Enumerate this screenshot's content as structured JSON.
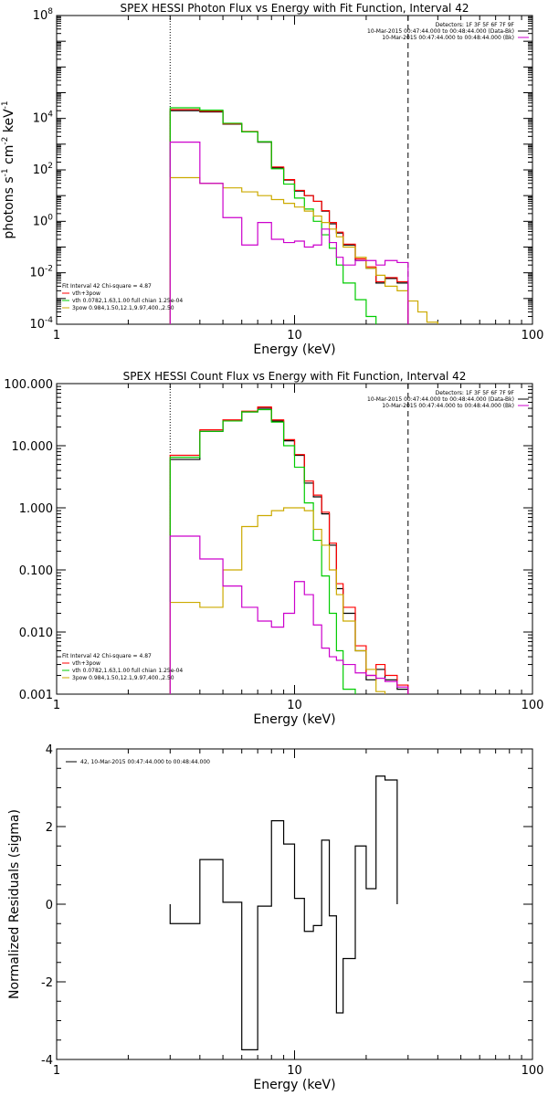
{
  "chart_data": [
    {
      "type": "line",
      "step": true,
      "title": "SPEX HESSI Photon Flux vs Energy with Fit Function, Interval 42",
      "xlabel": "Energy (keV)",
      "ylabel": "photons s^-1 cm^-2 keV^-1",
      "ylabel_parts": [
        "photons s",
        "-1",
        " cm",
        "-2",
        " keV",
        "-1"
      ],
      "xscale": "log",
      "yscale": "log",
      "xlim": [
        1,
        100
      ],
      "ylim": [
        0.0001,
        100000000
      ],
      "xticks": [
        {
          "v": 1,
          "label": "1"
        },
        {
          "v": 10,
          "label": "10"
        },
        {
          "v": 100,
          "label": "100"
        }
      ],
      "yticks": [
        {
          "v": 0.0001,
          "base": "10",
          "exp": "-4"
        },
        {
          "v": 0.01,
          "base": "10",
          "exp": "-2"
        },
        {
          "v": 1,
          "base": "10",
          "exp": "0"
        },
        {
          "v": 100,
          "base": "10",
          "exp": "2"
        },
        {
          "v": 10000,
          "base": "10",
          "exp": "4"
        },
        {
          "v": 100000000,
          "base": "10",
          "exp": "8"
        }
      ],
      "vlines": [
        {
          "x": 3,
          "style": "dotted"
        },
        {
          "x": 30,
          "style": "dashed"
        }
      ],
      "legend_top_right": [
        {
          "text": "Detectors: 1F 3F 5F 6F 7F 9F",
          "color": null
        },
        {
          "text": "10-Mar-2015 00:47:44.000 to 00:48:44.000 (Data-Bk)",
          "color": "#000000"
        },
        {
          "text": "10-Mar-2015 00:47:44.000 to 00:48:44.000 (Bk)",
          "color": "#cc00cc"
        }
      ],
      "legend_bottom_left": [
        {
          "text": "Fit Interval 42   Chi-square = 4.87",
          "color": null
        },
        {
          "text": "vth+3pow",
          "color": "#ff0000"
        },
        {
          "text": "vth 0.0782,1.63,1.00  full chian 1.25e-04",
          "color": "#00cc00"
        },
        {
          "text": "3pow 0.984,1.50,12.1,9.97,400.,2.50",
          "color": "#ccaa00"
        }
      ],
      "bin_edges": [
        3,
        4,
        5,
        6,
        7,
        8,
        9,
        10,
        11,
        12,
        13,
        14,
        15,
        16,
        18,
        20,
        22,
        24,
        27,
        30,
        33,
        36,
        40
      ],
      "series": [
        {
          "name": "Data-Bk",
          "color": "#000000",
          "values": [
            20000,
            18000,
            6000,
            3000,
            1200,
            120,
            40,
            15,
            10,
            6,
            2.5,
            0.8,
            0.35,
            0.12,
            0.03,
            0.015,
            0.004,
            0.006,
            0.004
          ]
        },
        {
          "name": "vth+3pow",
          "color": "#ff0000",
          "values": [
            22000,
            19000,
            6200,
            3100,
            1250,
            130,
            42,
            16,
            10,
            6,
            2.6,
            0.9,
            0.38,
            0.13,
            0.035,
            0.017,
            0.0045,
            0.0065,
            0.0045
          ]
        },
        {
          "name": "vth",
          "color": "#00cc00",
          "values": [
            26000,
            21000,
            6500,
            3000,
            1250,
            110,
            28,
            8,
            3,
            1,
            0.3,
            0.09,
            0.02,
            0.004,
            0.0009,
            0.0002,
            2e-05
          ]
        },
        {
          "name": "3pow",
          "color": "#ccaa00",
          "values": [
            50,
            30,
            20,
            14,
            10,
            7,
            5,
            3.6,
            2.5,
            1.6,
            0.9,
            0.5,
            0.25,
            0.1,
            0.04,
            0.015,
            0.008,
            0.003,
            0.002,
            0.0008,
            0.0003,
            0.00012
          ]
        },
        {
          "name": "Bk",
          "color": "#cc00cc",
          "values": [
            1200,
            30,
            1.4,
            0.12,
            0.9,
            0.2,
            0.15,
            0.17,
            0.1,
            0.12,
            0.5,
            0.15,
            0.04,
            0.02,
            0.03,
            0.03,
            0.02,
            0.03,
            0.025
          ]
        }
      ]
    },
    {
      "type": "line",
      "step": true,
      "title": "SPEX HESSI Count Flux vs Energy with Fit Function, Interval 42",
      "xlabel": "Energy (keV)",
      "ylabel": "",
      "xscale": "log",
      "yscale": "log",
      "xlim": [
        1,
        100
      ],
      "ylim": [
        0.001,
        100
      ],
      "xticks": [
        {
          "v": 1,
          "label": "1"
        },
        {
          "v": 10,
          "label": "10"
        },
        {
          "v": 100,
          "label": "100"
        }
      ],
      "yticks": [
        {
          "v": 0.001,
          "label": "0.001"
        },
        {
          "v": 0.01,
          "label": "0.010"
        },
        {
          "v": 0.1,
          "label": "0.100"
        },
        {
          "v": 1,
          "label": "1.000"
        },
        {
          "v": 10,
          "label": "10.000"
        },
        {
          "v": 100,
          "label": "100.000"
        }
      ],
      "vlines": [
        {
          "x": 3,
          "style": "dotted"
        },
        {
          "x": 30,
          "style": "dashed"
        }
      ],
      "legend_top_right": [
        {
          "text": "Detectors: 1F 3F 5F 6F 7F 9F",
          "color": null
        },
        {
          "text": "10-Mar-2015 00:47:44.000 to 00:48:44.000 (Data-Bk)",
          "color": "#000000"
        },
        {
          "text": "10-Mar-2015 00:47:44.000 to 00:48:44.000 (Bk)",
          "color": "#cc00cc"
        }
      ],
      "legend_bottom_left": [
        {
          "text": "Fit Interval 42   Chi-square = 4.87",
          "color": null
        },
        {
          "text": "vth+3pow",
          "color": "#ff0000"
        },
        {
          "text": "vth 0.0782,1.63,1.00  full chian 1.25e-04",
          "color": "#00cc00"
        },
        {
          "text": "3pow 0.984,1.50,12.1,9.97,400.,2.50",
          "color": "#ccaa00"
        }
      ],
      "bin_edges": [
        3,
        4,
        5,
        6,
        7,
        8,
        9,
        10,
        11,
        12,
        13,
        14,
        15,
        16,
        18,
        20,
        22,
        24,
        27,
        30
      ],
      "series": [
        {
          "name": "Data-Bk",
          "color": "#000000",
          "values": [
            6,
            17,
            25,
            35,
            40,
            25,
            12,
            7,
            2.5,
            1.5,
            0.8,
            0.25,
            0.05,
            0.02,
            0.005,
            0.0017,
            0.0025,
            0.0017,
            0.0012
          ]
        },
        {
          "name": "vth+3pow",
          "color": "#ff0000",
          "values": [
            7,
            18,
            26,
            36,
            42,
            26,
            12.5,
            7.2,
            2.7,
            1.6,
            0.85,
            0.27,
            0.06,
            0.025,
            0.006,
            0.002,
            0.003,
            0.002,
            0.0014
          ]
        },
        {
          "name": "vth",
          "color": "#00cc00",
          "values": [
            6.5,
            17,
            25,
            35,
            38,
            24,
            10,
            4.5,
            1.2,
            0.3,
            0.08,
            0.02,
            0.005,
            0.0012,
            0.0002
          ]
        },
        {
          "name": "3pow",
          "color": "#ccaa00",
          "values": [
            0.03,
            0.025,
            0.1,
            0.5,
            0.75,
            0.9,
            1.0,
            1.0,
            0.9,
            0.45,
            0.25,
            0.1,
            0.04,
            0.015,
            0.005,
            0.0025,
            0.0011,
            0.0008,
            0.0005
          ]
        },
        {
          "name": "Bk",
          "color": "#cc00cc",
          "values": [
            0.35,
            0.15,
            0.055,
            0.025,
            0.015,
            0.012,
            0.02,
            0.065,
            0.04,
            0.013,
            0.0055,
            0.004,
            0.0035,
            0.003,
            0.0022,
            0.002,
            0.0018,
            0.0016,
            0.0013
          ]
        }
      ]
    },
    {
      "type": "line",
      "step": true,
      "title": "",
      "xlabel": "Energy (keV)",
      "ylabel": "Normalized Residuals (sigma)",
      "xscale": "log",
      "yscale": "linear",
      "xlim": [
        1,
        100
      ],
      "ylim": [
        -4,
        4
      ],
      "xticks": [
        {
          "v": 1,
          "label": "1"
        },
        {
          "v": 10,
          "label": "10"
        },
        {
          "v": 100,
          "label": "100"
        }
      ],
      "yticks": [
        {
          "v": -4,
          "label": "-4"
        },
        {
          "v": -2,
          "label": "-2"
        },
        {
          "v": 0,
          "label": "0"
        },
        {
          "v": 2,
          "label": "2"
        },
        {
          "v": 4,
          "label": "4"
        }
      ],
      "legend_top_left": [
        {
          "text": "42, 10-Mar-2015 00:47:44.000 to 00:48:44.000",
          "color": "#000000"
        }
      ],
      "bin_edges": [
        3,
        4,
        5,
        6,
        7,
        8,
        9,
        10,
        11,
        12,
        13,
        14,
        15,
        16,
        18,
        20,
        22,
        24,
        27,
        30
      ],
      "series": [
        {
          "name": "42, 10-Mar-2015 00:47:44.000 to 00:48:44.000",
          "color": "#000000",
          "values": [
            -0.5,
            1.15,
            0.05,
            -3.75,
            -0.05,
            2.15,
            1.55,
            0.15,
            -0.7,
            -0.55,
            1.65,
            -0.3,
            -2.8,
            -1.4,
            1.5,
            0.4,
            3.3,
            3.2
          ]
        }
      ]
    }
  ]
}
